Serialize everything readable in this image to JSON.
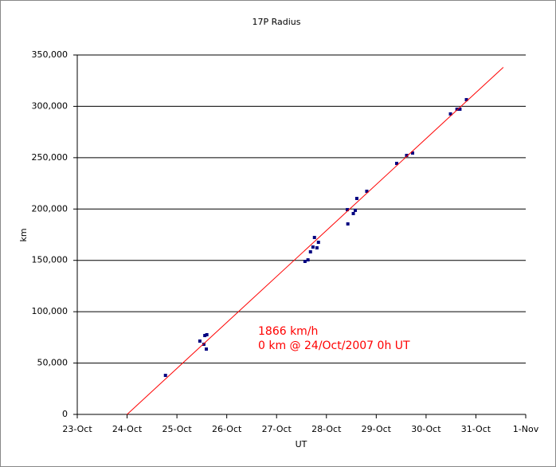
{
  "chart_data": {
    "type": "scatter",
    "title": "17P Radius",
    "x_label": "UT",
    "y_label": "km",
    "xlim": [
      23,
      32
    ],
    "ylim": [
      0,
      350000
    ],
    "xticks": [
      {
        "value": 23,
        "label": "23-Oct"
      },
      {
        "value": 24,
        "label": "24-Oct"
      },
      {
        "value": 25,
        "label": "25-Oct"
      },
      {
        "value": 26,
        "label": "26-Oct"
      },
      {
        "value": 27,
        "label": "27-Oct"
      },
      {
        "value": 28,
        "label": "28-Oct"
      },
      {
        "value": 29,
        "label": "29-Oct"
      },
      {
        "value": 30,
        "label": "30-Oct"
      },
      {
        "value": 31,
        "label": "31-Oct"
      },
      {
        "value": 32,
        "label": "1-Nov"
      }
    ],
    "yticks": [
      0,
      {
        "value": 50000,
        "label": "50,000"
      },
      {
        "value": 100000,
        "label": "100,000"
      },
      {
        "value": 150000,
        "label": "150,000"
      },
      {
        "value": 200000,
        "label": "200,000"
      },
      {
        "value": 250000,
        "label": "250,000"
      },
      {
        "value": 300000,
        "label": "300,000"
      },
      {
        "value": 350000,
        "label": "350,000"
      }
    ],
    "grid": true,
    "series": [
      {
        "color": "#000080",
        "mode": "markers",
        "x": [
          24.77,
          25.46,
          25.54,
          25.56,
          25.6,
          25.59,
          27.57,
          27.63,
          27.68,
          27.73,
          27.76,
          27.81,
          27.84,
          28.42,
          28.43,
          28.54,
          28.58,
          28.61,
          28.81,
          29.41,
          29.61,
          29.73,
          30.49,
          30.62,
          30.68,
          30.81
        ],
        "values": [
          38000,
          71400,
          68300,
          76800,
          77600,
          63600,
          149000,
          150500,
          158300,
          163000,
          172300,
          162200,
          167600,
          199400,
          185500,
          195600,
          198700,
          210300,
          217300,
          244400,
          252200,
          254500,
          292600,
          297200,
          297200,
          306500
        ]
      },
      {
        "color": "#ff0000",
        "mode": "line",
        "x": [
          24,
          31.55
        ],
        "values": [
          0,
          338000
        ]
      }
    ],
    "annotations": [
      "1866 km/h",
      "0 km @ 24/Oct/2007 0h UT"
    ]
  }
}
